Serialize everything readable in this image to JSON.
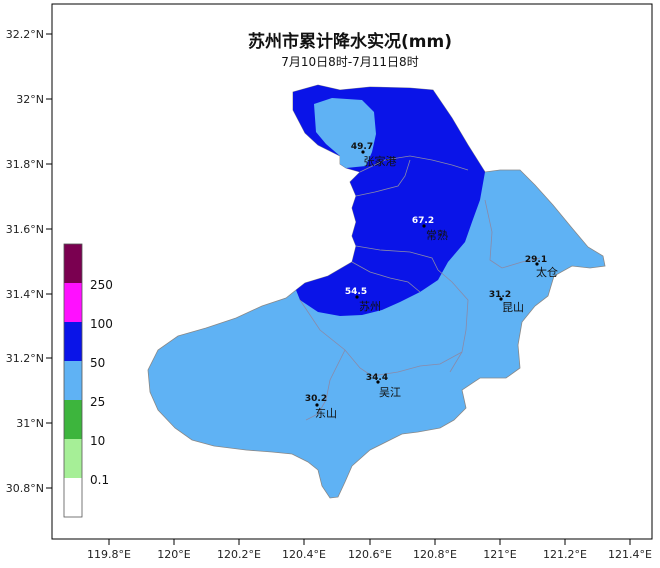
{
  "title": "苏州市累计降水实况(mm)",
  "subtitle": "7月10日8时-7月11日8时",
  "y_ticks": [
    "32.2°N",
    "32°N",
    "31.8°N",
    "31.6°N",
    "31.4°N",
    "31.2°N",
    "31°N",
    "30.8°N"
  ],
  "x_ticks": [
    "119.8°E",
    "120°E",
    "120.2°E",
    "120.4°E",
    "120.6°E",
    "120.8°E",
    "121°E",
    "121.2°E",
    "121.4°E"
  ],
  "legend": {
    "labels": [
      "250",
      "100",
      "50",
      "25",
      "10",
      "0.1"
    ],
    "colors": [
      "#7a0050",
      "#ff10ff",
      "#0a14e8",
      "#5fb2f4",
      "#3db53d",
      "#a6ef97",
      "#ffffff"
    ]
  },
  "stations": [
    {
      "value": "49.7",
      "name": "张家港"
    },
    {
      "value": "67.2",
      "name": "常熟"
    },
    {
      "value": "29.1",
      "name": "太仓"
    },
    {
      "value": "31.2",
      "name": "昆山"
    },
    {
      "value": "54.5",
      "name": "苏州"
    },
    {
      "value": "34.4",
      "name": "吴江"
    },
    {
      "value": "30.2",
      "name": "东山"
    }
  ]
}
